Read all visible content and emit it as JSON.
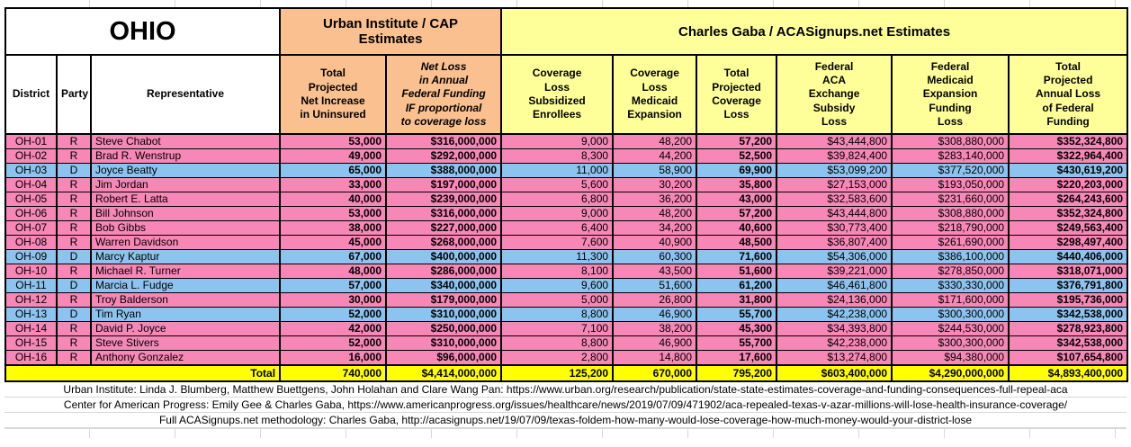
{
  "title": "OHIO",
  "groups": {
    "urban": "Urban Institute / CAP\nEstimates",
    "gaba": "Charles Gaba / ACASignups.net Estimates"
  },
  "columns": [
    "District",
    "Party",
    "Representative",
    "Total\nProjected\nNet Increase\nin Uninsured",
    "Net Loss\nin Annual\nFederal Funding\nIF proportional\nto coverage loss",
    "Coverage\nLoss\nSubsidized\nEnrollees",
    "Coverage\nLoss\nMedicaid\nExpansion",
    "Total\nProjected\nCoverage\nLoss",
    "Federal\nACA\nExchange\nSubsidy\nLoss",
    "Federal\nMedicaid\nExpansion\nFunding\nLoss",
    "Total\nProjected\nAnnual Loss\nof Federal\nFunding"
  ],
  "rows": [
    {
      "district": "OH-01",
      "party": "R",
      "rep": "Steve Chabot",
      "uninsured": "53,000",
      "net_loss": "$316,000,000",
      "cov_sub": "9,000",
      "cov_med": "48,200",
      "cov_total": "57,200",
      "fed_aca": "$43,444,800",
      "fed_med": "$308,880,000",
      "fed_total": "$352,324,800"
    },
    {
      "district": "OH-02",
      "party": "R",
      "rep": "Brad R. Wenstrup",
      "uninsured": "49,000",
      "net_loss": "$292,000,000",
      "cov_sub": "8,300",
      "cov_med": "44,200",
      "cov_total": "52,500",
      "fed_aca": "$39,824,400",
      "fed_med": "$283,140,000",
      "fed_total": "$322,964,400"
    },
    {
      "district": "OH-03",
      "party": "D",
      "rep": "Joyce Beatty",
      "uninsured": "65,000",
      "net_loss": "$388,000,000",
      "cov_sub": "11,000",
      "cov_med": "58,900",
      "cov_total": "69,900",
      "fed_aca": "$53,099,200",
      "fed_med": "$377,520,000",
      "fed_total": "$430,619,200"
    },
    {
      "district": "OH-04",
      "party": "R",
      "rep": "Jim Jordan",
      "uninsured": "33,000",
      "net_loss": "$197,000,000",
      "cov_sub": "5,600",
      "cov_med": "30,200",
      "cov_total": "35,800",
      "fed_aca": "$27,153,000",
      "fed_med": "$193,050,000",
      "fed_total": "$220,203,000"
    },
    {
      "district": "OH-05",
      "party": "R",
      "rep": "Robert E. Latta",
      "uninsured": "40,000",
      "net_loss": "$239,000,000",
      "cov_sub": "6,800",
      "cov_med": "36,200",
      "cov_total": "43,000",
      "fed_aca": "$32,583,600",
      "fed_med": "$231,660,000",
      "fed_total": "$264,243,600"
    },
    {
      "district": "OH-06",
      "party": "R",
      "rep": "Bill Johnson",
      "uninsured": "53,000",
      "net_loss": "$316,000,000",
      "cov_sub": "9,000",
      "cov_med": "48,200",
      "cov_total": "57,200",
      "fed_aca": "$43,444,800",
      "fed_med": "$308,880,000",
      "fed_total": "$352,324,800"
    },
    {
      "district": "OH-07",
      "party": "R",
      "rep": "Bob Gibbs",
      "uninsured": "38,000",
      "net_loss": "$227,000,000",
      "cov_sub": "6,400",
      "cov_med": "34,200",
      "cov_total": "40,600",
      "fed_aca": "$30,773,400",
      "fed_med": "$218,790,000",
      "fed_total": "$249,563,400"
    },
    {
      "district": "OH-08",
      "party": "R",
      "rep": "Warren Davidson",
      "uninsured": "45,000",
      "net_loss": "$268,000,000",
      "cov_sub": "7,600",
      "cov_med": "40,900",
      "cov_total": "48,500",
      "fed_aca": "$36,807,400",
      "fed_med": "$261,690,000",
      "fed_total": "$298,497,400"
    },
    {
      "district": "OH-09",
      "party": "D",
      "rep": "Marcy Kaptur",
      "uninsured": "67,000",
      "net_loss": "$400,000,000",
      "cov_sub": "11,300",
      "cov_med": "60,300",
      "cov_total": "71,600",
      "fed_aca": "$54,306,000",
      "fed_med": "$386,100,000",
      "fed_total": "$440,406,000"
    },
    {
      "district": "OH-10",
      "party": "R",
      "rep": "Michael R. Turner",
      "uninsured": "48,000",
      "net_loss": "$286,000,000",
      "cov_sub": "8,100",
      "cov_med": "43,500",
      "cov_total": "51,600",
      "fed_aca": "$39,221,000",
      "fed_med": "$278,850,000",
      "fed_total": "$318,071,000"
    },
    {
      "district": "OH-11",
      "party": "D",
      "rep": "Marcia L. Fudge",
      "uninsured": "57,000",
      "net_loss": "$340,000,000",
      "cov_sub": "9,600",
      "cov_med": "51,600",
      "cov_total": "61,200",
      "fed_aca": "$46,461,800",
      "fed_med": "$330,330,000",
      "fed_total": "$376,791,800"
    },
    {
      "district": "OH-12",
      "party": "R",
      "rep": "Troy Balderson",
      "uninsured": "30,000",
      "net_loss": "$179,000,000",
      "cov_sub": "5,000",
      "cov_med": "26,800",
      "cov_total": "31,800",
      "fed_aca": "$24,136,000",
      "fed_med": "$171,600,000",
      "fed_total": "$195,736,000"
    },
    {
      "district": "OH-13",
      "party": "D",
      "rep": "Tim Ryan",
      "uninsured": "52,000",
      "net_loss": "$310,000,000",
      "cov_sub": "8,800",
      "cov_med": "46,900",
      "cov_total": "55,700",
      "fed_aca": "$42,238,000",
      "fed_med": "$300,300,000",
      "fed_total": "$342,538,000"
    },
    {
      "district": "OH-14",
      "party": "R",
      "rep": "David P. Joyce",
      "uninsured": "42,000",
      "net_loss": "$250,000,000",
      "cov_sub": "7,100",
      "cov_med": "38,200",
      "cov_total": "45,300",
      "fed_aca": "$34,393,800",
      "fed_med": "$244,530,000",
      "fed_total": "$278,923,800"
    },
    {
      "district": "OH-15",
      "party": "R",
      "rep": "Steve Stivers",
      "uninsured": "52,000",
      "net_loss": "$310,000,000",
      "cov_sub": "8,800",
      "cov_med": "46,900",
      "cov_total": "55,700",
      "fed_aca": "$42,238,000",
      "fed_med": "$300,300,000",
      "fed_total": "$342,538,000"
    },
    {
      "district": "OH-16",
      "party": "R",
      "rep": "Anthony Gonzalez",
      "uninsured": "16,000",
      "net_loss": "$96,000,000",
      "cov_sub": "2,800",
      "cov_med": "14,800",
      "cov_total": "17,600",
      "fed_aca": "$13,274,800",
      "fed_med": "$94,380,000",
      "fed_total": "$107,654,800"
    }
  ],
  "total": {
    "label": "Total",
    "uninsured": "740,000",
    "net_loss": "$4,414,000,000",
    "cov_sub": "125,200",
    "cov_med": "670,000",
    "cov_total": "795,200",
    "fed_aca": "$603,400,000",
    "fed_med": "$4,290,000,000",
    "fed_total": "$4,893,400,000"
  },
  "footnotes": [
    "Urban Institute: Linda J. Blumberg, Matthew Buettgens, John Holahan and Clare Wang Pan: https://www.urban.org/research/publication/state-state-estimates-coverage-and-funding-consequences-full-repeal-aca",
    "Center for American Progress: Emily Gee & Charles Gaba, https://www.americanprogress.org/issues/healthcare/news/2019/07/09/471902/aca-repealed-texas-v-azar-millions-will-lose-health-insurance-coverage/",
    "Full ACASignups.net methodology: Charles Gaba, http://acasignups.net/19/07/09/texas-foldem-how-many-would-lose-coverage-how-much-money-would-your-district-lose"
  ],
  "colors": {
    "republican_row": "#F687B6",
    "democrat_row": "#8DC3EF",
    "urban_header": "#FAC090",
    "gaba_header": "#FFFF99",
    "total_row": "#FFFF00",
    "border": "#000000"
  }
}
